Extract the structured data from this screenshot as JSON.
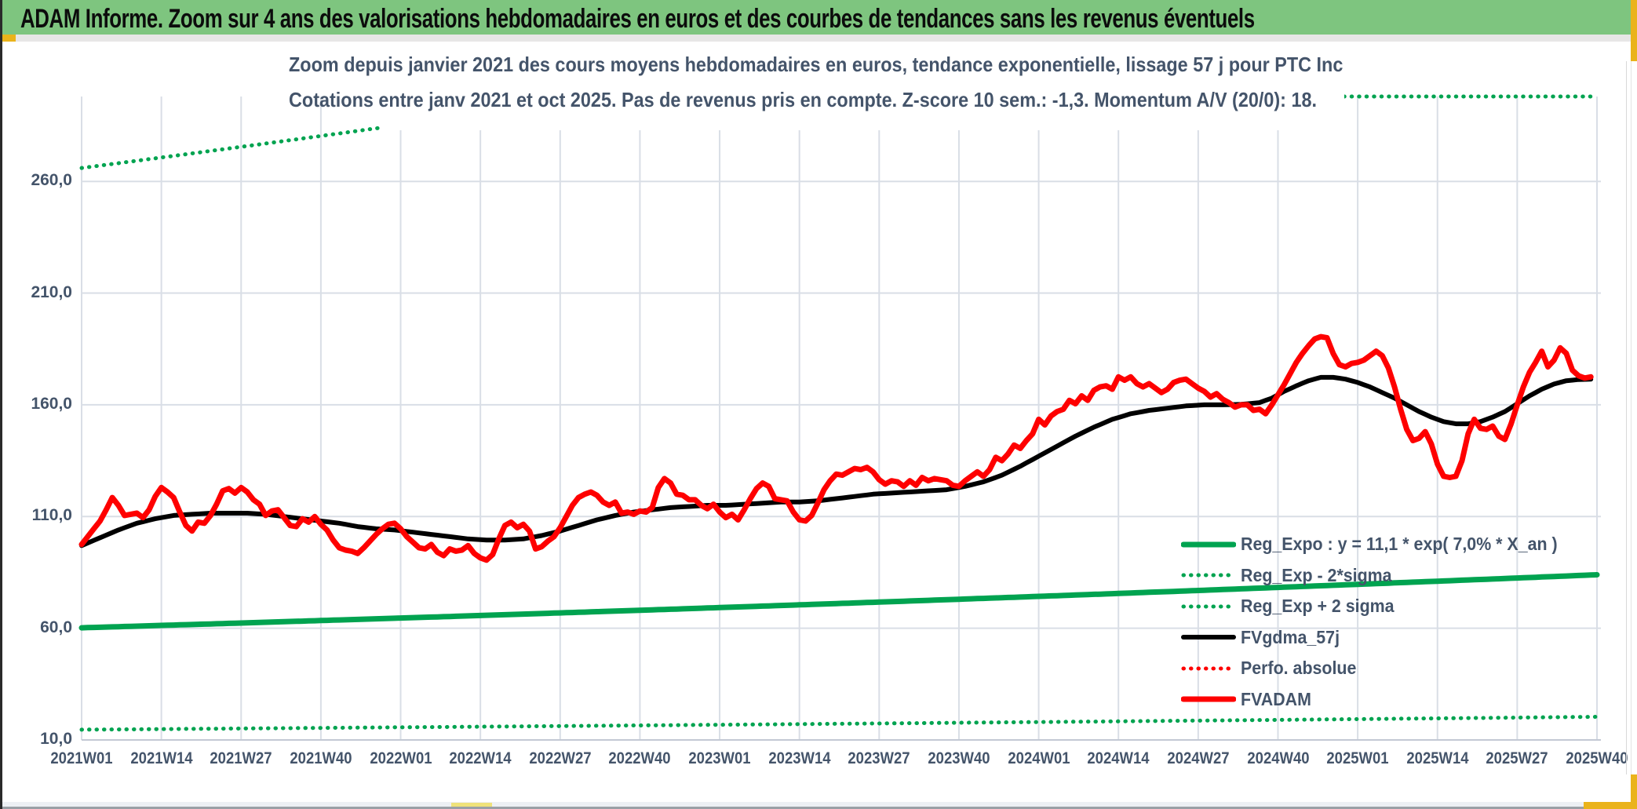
{
  "window": {
    "title": "ADAM Informe. Zoom sur 4 ans des valorisations hebdomadaires en euros et des courbes de tendances sans les revenus éventuels",
    "colors": {
      "header_bg": "#7EC57F",
      "accent_yellow": "#EAB31B",
      "text_dark_blue": "#44546A",
      "gridline": "#D9DEE6",
      "axis_line": "#C3C9D4",
      "series_green": "#00A350",
      "series_red": "#FE0000",
      "series_black": "#000000"
    }
  },
  "chart_data": {
    "type": "line",
    "subtitle_line1": "Zoom depuis janvier 2021 des cours moyens hebdomadaires en euros, tendance exponentielle, lissage 57 j pour PTC Inc",
    "subtitle_line2": "Cotations entre janv 2021 et oct 2025. Pas de revenus pris en compte. Z-score 10 sem.: -1,3. Momentum A/V (20/0): 18.",
    "stock": "PTC Inc",
    "z_score_10_sem": "-1,3",
    "momentum_av_20_0": "18",
    "y_axis": {
      "min": 10,
      "max": 298,
      "gridline_step": 50,
      "grid": true
    },
    "x_axis": {
      "weeks_total": 247,
      "label_every_weeks": 13,
      "grid": true
    },
    "y_ticks": [
      {
        "label": "260,0",
        "value": 260
      },
      {
        "label": "210,0",
        "value": 210
      },
      {
        "label": "160,0",
        "value": 160
      },
      {
        "label": "110,0",
        "value": 110
      },
      {
        "label": "60,0",
        "value": 60
      },
      {
        "label": "10,0",
        "value": 10
      }
    ],
    "x_tick_labels": [
      "2021W01",
      "2021W14",
      "2021W27",
      "2021W40",
      "2022W01",
      "2022W14",
      "2022W27",
      "2022W40",
      "2023W01",
      "2023W14",
      "2023W27",
      "2023W40",
      "2024W01",
      "2024W14",
      "2024W27",
      "2024W40",
      "2025W01",
      "2025W14",
      "2025W27",
      "2025W40"
    ],
    "legend_position": "inside-right-bottom",
    "series": [
      {
        "name": "Reg_Expo : y = 11,1 * exp( 7,0% *  X_an )",
        "role": "exponential-regression",
        "style": "solid",
        "color": "#00A350",
        "width": 7,
        "formula": {
          "start_value": 60.2,
          "annual_rate": 0.07
        }
      },
      {
        "name": "Reg_Exp - 2*sigma",
        "role": "lower-band",
        "style": "dotted",
        "color": "#00A350",
        "width": 5,
        "formula": {
          "start_value": 14.6,
          "annual_rate": 0.07
        }
      },
      {
        "name": "Reg_Exp + 2 sigma",
        "role": "upper-band",
        "style": "dotted",
        "color": "#00A350",
        "width": 5,
        "formula": {
          "start_value": 266,
          "annual_rate": 0.07
        },
        "clipped_at_axis_max": true
      },
      {
        "name": "FVgdma_57j",
        "role": "57-day-moving-average",
        "style": "solid",
        "color": "#000000",
        "width": 6,
        "keypoints": [
          [
            0,
            97
          ],
          [
            3,
            100.5
          ],
          [
            6,
            104
          ],
          [
            9,
            107
          ],
          [
            12,
            109
          ],
          [
            15,
            110.5
          ],
          [
            18,
            111
          ],
          [
            21,
            111.5
          ],
          [
            24,
            111.5
          ],
          [
            27,
            111.5
          ],
          [
            30,
            111
          ],
          [
            33,
            110
          ],
          [
            36,
            109
          ],
          [
            39,
            108
          ],
          [
            42,
            107
          ],
          [
            45,
            105.5
          ],
          [
            48,
            104.5
          ],
          [
            51,
            104
          ],
          [
            54,
            103
          ],
          [
            57,
            102
          ],
          [
            60,
            101
          ],
          [
            63,
            100
          ],
          [
            66,
            99.5
          ],
          [
            69,
            99.5
          ],
          [
            72,
            100
          ],
          [
            75,
            101.5
          ],
          [
            78,
            103.5
          ],
          [
            81,
            106
          ],
          [
            84,
            108.5
          ],
          [
            87,
            110.5
          ],
          [
            90,
            112
          ],
          [
            93,
            113
          ],
          [
            96,
            114
          ],
          [
            99,
            114.5
          ],
          [
            102,
            115
          ],
          [
            105,
            115
          ],
          [
            108,
            115.5
          ],
          [
            111,
            116
          ],
          [
            114,
            116.5
          ],
          [
            117,
            116.5
          ],
          [
            120,
            117
          ],
          [
            123,
            118
          ],
          [
            126,
            119
          ],
          [
            129,
            120
          ],
          [
            132,
            120.5
          ],
          [
            135,
            121
          ],
          [
            138,
            121.5
          ],
          [
            141,
            122
          ],
          [
            144,
            123.5
          ],
          [
            147,
            125.5
          ],
          [
            150,
            128.5
          ],
          [
            153,
            132.5
          ],
          [
            156,
            137
          ],
          [
            159,
            141.5
          ],
          [
            162,
            146
          ],
          [
            165,
            150
          ],
          [
            168,
            153.5
          ],
          [
            171,
            156
          ],
          [
            174,
            157.5
          ],
          [
            177,
            158.5
          ],
          [
            180,
            159.5
          ],
          [
            183,
            160
          ],
          [
            186,
            160
          ],
          [
            189,
            160.2
          ],
          [
            192,
            161
          ],
          [
            194,
            163
          ],
          [
            196,
            166
          ],
          [
            198,
            168.5
          ],
          [
            200,
            170.8
          ],
          [
            202,
            172.3
          ],
          [
            204,
            172.3
          ],
          [
            206,
            171.5
          ],
          [
            208,
            170
          ],
          [
            210,
            168
          ],
          [
            212,
            165.5
          ],
          [
            214,
            163
          ],
          [
            216,
            160
          ],
          [
            218,
            157
          ],
          [
            220,
            154.5
          ],
          [
            222,
            152.5
          ],
          [
            224,
            151.5
          ],
          [
            226,
            151.5
          ],
          [
            228,
            152.5
          ],
          [
            230,
            154.5
          ],
          [
            232,
            157
          ],
          [
            234,
            160.5
          ],
          [
            236,
            164
          ],
          [
            238,
            167
          ],
          [
            240,
            169.3
          ],
          [
            242,
            170.8
          ],
          [
            244,
            171.3
          ],
          [
            246,
            171.5
          ]
        ]
      },
      {
        "name": "Perfo. absolue",
        "role": "absolute-performance",
        "style": "dotted",
        "color": "#FE0000",
        "width": 5,
        "same_points_as": "FVADAM",
        "note_visibility": "hidden behind FVADAM curve"
      },
      {
        "name": "FVADAM",
        "role": "weekly-valuation",
        "style": "solid",
        "color": "#FE0000",
        "width": 7,
        "start_week_label": "2021W01",
        "values_weekly": [
          97.5,
          101,
          104.5,
          108,
          113,
          118.5,
          115,
          110.5,
          111,
          111.5,
          109.5,
          113,
          119,
          123,
          121,
          118.5,
          112,
          106,
          103.5,
          107.5,
          107,
          110.5,
          115.5,
          121.5,
          122.5,
          120.5,
          123,
          121,
          117.5,
          115.5,
          110.5,
          112.5,
          113,
          109.5,
          106,
          105.5,
          109,
          107.5,
          110,
          106.5,
          104,
          99.5,
          96,
          95,
          94.5,
          93.5,
          96,
          99,
          102,
          104.5,
          106.5,
          107,
          104.5,
          101,
          98.5,
          96,
          95.5,
          97.5,
          94,
          92.5,
          95.5,
          94.5,
          95,
          97,
          93.5,
          91.5,
          90.5,
          93,
          100,
          106,
          107.5,
          105,
          106.5,
          103.5,
          95.5,
          96.5,
          99,
          101,
          105,
          110,
          115,
          118.5,
          120,
          121,
          119.5,
          116.5,
          115,
          116.5,
          111.5,
          112,
          111,
          112.5,
          112,
          114,
          123,
          127,
          125,
          120,
          119.5,
          117.5,
          117.5,
          115,
          113.5,
          115.5,
          112,
          109.5,
          111,
          108.5,
          113,
          118,
          122.5,
          125,
          123.5,
          118,
          117.5,
          117,
          112,
          108.5,
          108,
          110.5,
          116,
          122,
          126,
          129,
          128.5,
          130,
          131.5,
          131,
          132,
          130,
          126.5,
          124.5,
          126,
          125.5,
          123.5,
          126,
          124,
          127.5,
          126,
          127,
          126.5,
          126,
          124,
          123.5,
          126,
          128,
          130,
          128,
          131,
          136.5,
          135,
          138,
          142,
          140.5,
          144,
          147,
          153.5,
          151,
          155,
          157,
          158,
          162,
          160.5,
          164,
          162,
          166.5,
          168,
          168.5,
          167,
          172.5,
          171,
          172.5,
          169.5,
          168,
          169.5,
          167.5,
          165.5,
          167,
          170,
          171,
          171.5,
          169.5,
          167.5,
          166,
          163.5,
          165,
          162.5,
          161,
          159,
          160,
          160,
          157.5,
          158,
          156,
          160,
          164.5,
          169,
          174,
          179,
          183,
          186.5,
          189.5,
          190.5,
          190,
          183,
          178,
          177,
          178.5,
          179,
          180,
          182,
          184,
          182,
          176.5,
          168,
          158,
          149,
          144,
          145,
          148,
          142.5,
          133.5,
          128,
          127.5,
          128,
          135,
          147,
          153.5,
          149.5,
          149,
          150.5,
          146,
          144.5,
          151.5,
          160,
          168,
          174.5,
          179,
          184,
          177,
          180,
          185.5,
          183,
          175.5,
          173,
          172,
          172.5
        ]
      }
    ]
  }
}
